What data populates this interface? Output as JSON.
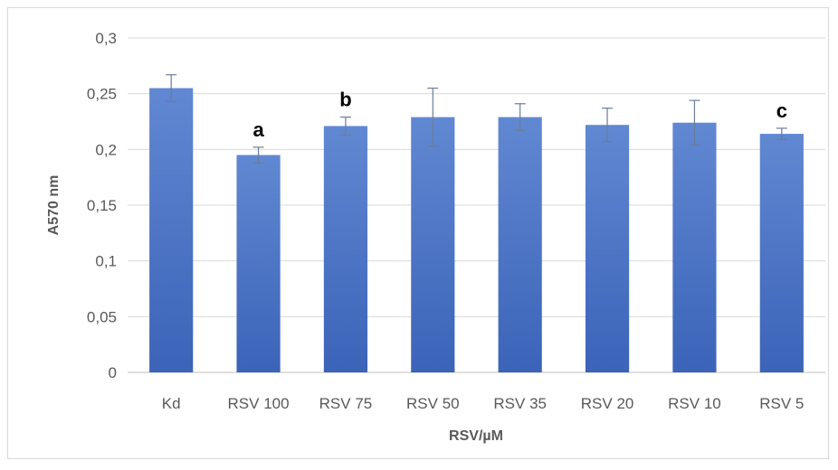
{
  "chart_data": {
    "type": "bar",
    "title": "",
    "xlabel": "RSV/µM",
    "ylabel": "A570 nm",
    "ylim": [
      0,
      0.3
    ],
    "yticks": [
      "0",
      "0,05",
      "0,1",
      "0,15",
      "0,2",
      "0,25",
      "0,3"
    ],
    "ytick_values": [
      0,
      0.05,
      0.1,
      0.15,
      0.2,
      0.25,
      0.3
    ],
    "categories": [
      "Kd",
      "RSV 100",
      "RSV 75",
      "RSV 50",
      "RSV 35",
      "RSV 20",
      "RSV 10",
      "RSV 5"
    ],
    "values": [
      0.255,
      0.195,
      0.221,
      0.229,
      0.229,
      0.222,
      0.224,
      0.214
    ],
    "errors": [
      0.012,
      0.007,
      0.008,
      0.026,
      0.012,
      0.015,
      0.02,
      0.005
    ],
    "annotations": [
      "",
      "a",
      "b",
      "",
      "",
      "",
      "",
      "c"
    ],
    "grid": true,
    "legend": "none",
    "bar_color": "#4a72c4"
  }
}
